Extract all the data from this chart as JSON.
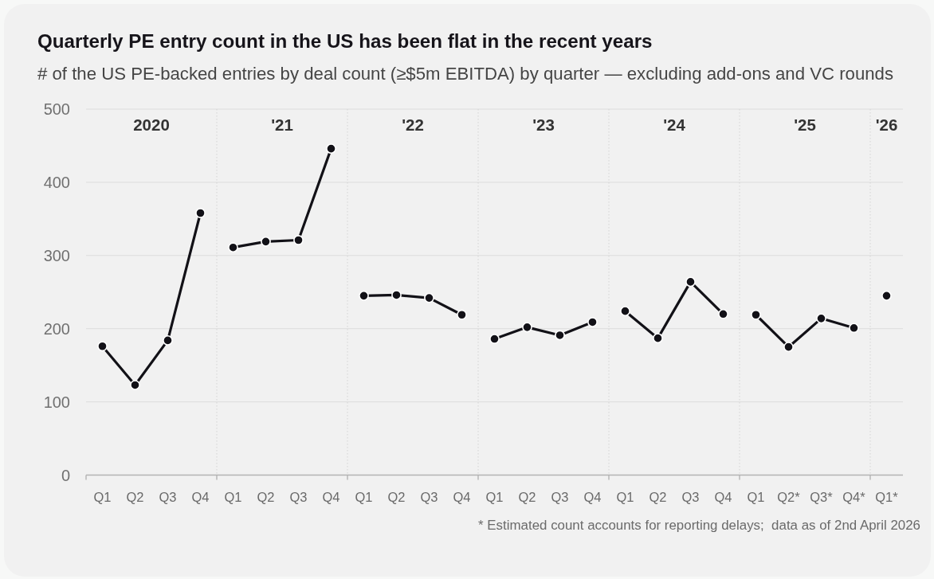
{
  "chart_data": {
    "type": "line",
    "title": "Quarterly PE entry count in the US has been flat in the recent years",
    "subtitle": "# of the US PE-backed entries by deal count (≥$5m EBITDA) by quarter — excluding add-ons and VC rounds",
    "annotations": [
      "2020",
      "'21",
      "'22",
      "'23",
      "'24",
      "'25",
      "'26",
      "* Estimated count accounts for reporting delays;  data as of 2nd April 2026"
    ],
    "categories": [
      "Q1",
      "Q2",
      "Q3",
      "Q4",
      "Q1",
      "Q2",
      "Q3",
      "Q4",
      "Q1",
      "Q2",
      "Q3",
      "Q4",
      "Q1",
      "Q2",
      "Q3",
      "Q4",
      "Q1",
      "Q2",
      "Q3",
      "Q4",
      "Q1",
      "Q2*",
      "Q3*",
      "Q4*",
      "Q1*"
    ],
    "ylim": [
      0,
      500
    ],
    "yticks": [
      0,
      100,
      200,
      300,
      400,
      500
    ],
    "grid": "y",
    "marker": "circle",
    "line_style": "solid",
    "series": [
      {
        "color": "#121117",
        "values": [
          176,
          123,
          184,
          358,
          null,
          null,
          null,
          null,
          null,
          null,
          null,
          null,
          null,
          null,
          null,
          null,
          null,
          null,
          null,
          null,
          null,
          null,
          null,
          null,
          null
        ]
      },
      {
        "color": "#121117",
        "values": [
          null,
          null,
          null,
          null,
          311,
          319,
          321,
          446,
          null,
          null,
          null,
          null,
          null,
          null,
          null,
          null,
          null,
          null,
          null,
          null,
          null,
          null,
          null,
          null,
          null
        ]
      },
      {
        "color": "#121117",
        "values": [
          null,
          null,
          null,
          null,
          null,
          null,
          null,
          null,
          245,
          246,
          242,
          219,
          null,
          null,
          null,
          null,
          null,
          null,
          null,
          null,
          null,
          null,
          null,
          null,
          null
        ]
      },
      {
        "color": "#121117",
        "values": [
          null,
          null,
          null,
          null,
          null,
          null,
          null,
          null,
          null,
          null,
          null,
          null,
          186,
          202,
          191,
          209,
          null,
          null,
          null,
          null,
          null,
          null,
          null,
          null,
          null
        ]
      },
      {
        "color": "#121117",
        "values": [
          null,
          null,
          null,
          null,
          null,
          null,
          null,
          null,
          null,
          null,
          null,
          null,
          null,
          null,
          null,
          null,
          224,
          187,
          264,
          220,
          null,
          null,
          null,
          null,
          null
        ]
      },
      {
        "color": "#121117",
        "values": [
          null,
          null,
          null,
          null,
          null,
          null,
          null,
          null,
          null,
          null,
          null,
          null,
          null,
          null,
          null,
          null,
          null,
          null,
          null,
          null,
          219,
          175,
          214,
          201,
          null
        ]
      },
      {
        "color": "#121117",
        "values": [
          null,
          null,
          null,
          null,
          null,
          null,
          null,
          null,
          null,
          null,
          null,
          null,
          null,
          null,
          null,
          null,
          null,
          null,
          null,
          null,
          null,
          null,
          null,
          null,
          245
        ]
      }
    ]
  }
}
